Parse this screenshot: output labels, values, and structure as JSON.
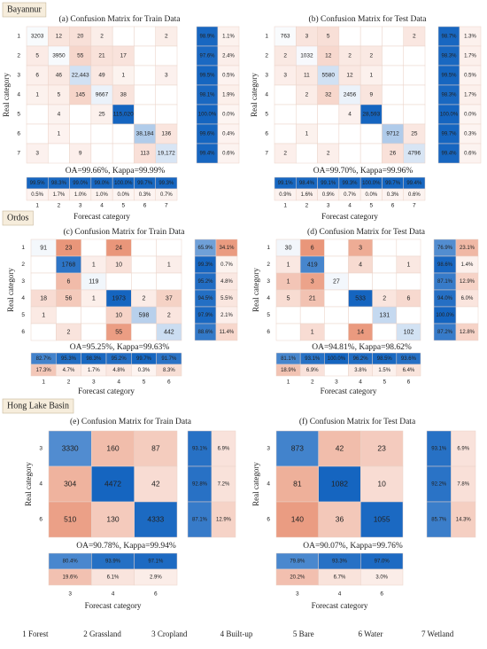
{
  "regions": [
    {
      "name": "Bayannur",
      "panels": [
        {
          "title": "(a) Confusion Matrix for Train Data",
          "labels": [
            "1",
            "2",
            "3",
            "4",
            "5",
            "6",
            "7"
          ],
          "matrix": [
            [
              "3203",
              "12",
              "20",
              "2",
              null,
              null,
              "2"
            ],
            [
              "5",
              "3950",
              "55",
              "21",
              "17",
              null,
              null
            ],
            [
              "6",
              "46",
              "22,443",
              "49",
              "1",
              null,
              "3"
            ],
            [
              "1",
              "5",
              "145",
              "9667",
              "38",
              null,
              null
            ],
            [
              null,
              "4",
              null,
              "25",
              "115,020",
              null,
              null
            ],
            [
              null,
              "1",
              null,
              null,
              null,
              "38,184",
              "136"
            ],
            [
              "3",
              null,
              "9",
              null,
              null,
              "113",
              "19,172"
            ]
          ],
          "row_accuracy": [
            [
              "98.9%",
              "1.1%"
            ],
            [
              "97.6%",
              "2.4%"
            ],
            [
              "99.5%",
              "0.5%"
            ],
            [
              "98.1%",
              "1.9%"
            ],
            [
              "100.0%",
              "0.0%"
            ],
            [
              "99.6%",
              "0.4%"
            ],
            [
              "99.4%",
              "0.6%"
            ]
          ],
          "col_accuracy": [
            [
              "99.5%",
              "98.3%",
              "99.0%",
              "99.0%",
              "100.0%",
              "99.7%",
              "99.3%"
            ],
            [
              "0.5%",
              "1.7%",
              "1.0%",
              "1.0%",
              "0.0%",
              "0.3%",
              "0.7%"
            ]
          ],
          "summary": "OA=99.66%, Kappa=99.99%",
          "y_label": "Real category",
          "x_label": "Forecast category"
        },
        {
          "title": "(b) Confusion Matrix for Test Data",
          "labels": [
            "1",
            "2",
            "3",
            "4",
            "5",
            "6",
            "7"
          ],
          "matrix": [
            [
              "763",
              "3",
              "5",
              null,
              null,
              null,
              "2"
            ],
            [
              "2",
              "1032",
              "12",
              "2",
              "2",
              null,
              null
            ],
            [
              "3",
              "11",
              "5580",
              "12",
              "1",
              null,
              null
            ],
            [
              null,
              "2",
              "32",
              "2456",
              "9",
              null,
              null
            ],
            [
              null,
              null,
              null,
              "4",
              "28,593",
              null,
              null
            ],
            [
              null,
              "1",
              null,
              null,
              null,
              "9712",
              "25"
            ],
            [
              "2",
              null,
              "2",
              null,
              null,
              "26",
              "4796"
            ]
          ],
          "row_accuracy": [
            [
              "98.7%",
              "1.3%"
            ],
            [
              "98.3%",
              "1.7%"
            ],
            [
              "99.5%",
              "0.5%"
            ],
            [
              "98.3%",
              "1.7%"
            ],
            [
              "100.0%",
              "0.0%"
            ],
            [
              "99.7%",
              "0.3%"
            ],
            [
              "99.4%",
              "0.6%"
            ]
          ],
          "col_accuracy": [
            [
              "99.1%",
              "98.4%",
              "99.1%",
              "99.3%",
              "100.0%",
              "99.7%",
              "99.4%"
            ],
            [
              "0.9%",
              "1.6%",
              "0.9%",
              "0.7%",
              "0.0%",
              "0.3%",
              "0.6%"
            ]
          ],
          "summary": "OA=99.70%, Kappa=99.96%",
          "y_label": "Real category",
          "x_label": "Forecast category"
        }
      ]
    },
    {
      "name": "Ordos",
      "panels": [
        {
          "title": "(c) Confusion Matrix for Train Data",
          "labels": [
            "1",
            "2",
            "3",
            "4",
            "5",
            "6"
          ],
          "matrix": [
            [
              "91",
              "23",
              null,
              "24",
              null,
              null
            ],
            [
              null,
              "1768",
              "1",
              "10",
              null,
              "1"
            ],
            [
              null,
              "6",
              "119",
              null,
              null,
              null
            ],
            [
              "18",
              "56",
              "1",
              "1973",
              "2",
              "37"
            ],
            [
              "1",
              null,
              null,
              "10",
              "598",
              "2"
            ],
            [
              null,
              "2",
              null,
              "55",
              null,
              "442"
            ]
          ],
          "row_accuracy": [
            [
              "65.9%",
              "34.1%"
            ],
            [
              "99.3%",
              "0.7%"
            ],
            [
              "95.2%",
              "4.8%"
            ],
            [
              "94.5%",
              "5.5%"
            ],
            [
              "97.9%",
              "2.1%"
            ],
            [
              "88.6%",
              "11.4%"
            ]
          ],
          "col_accuracy": [
            [
              "82.7%",
              "95.3%",
              "98.3%",
              "95.2%",
              "99.7%",
              "91.7%"
            ],
            [
              "17.3%",
              "4.7%",
              "1.7%",
              "4.8%",
              "0.3%",
              "8.3%"
            ]
          ],
          "summary": "OA=95.25%, Kappa=99.63%",
          "y_label": "Real category",
          "x_label": "Forecast category"
        },
        {
          "title": "(d) Confusion Matrix for Test Data",
          "labels": [
            "1",
            "2",
            "3",
            "4",
            "5",
            "6"
          ],
          "matrix": [
            [
              "30",
              "6",
              null,
              "3",
              null,
              null
            ],
            [
              "1",
              "419",
              null,
              "4",
              null,
              "1"
            ],
            [
              "1",
              "3",
              "27",
              null,
              null,
              null
            ],
            [
              "5",
              "21",
              null,
              "533",
              "2",
              "6"
            ],
            [
              null,
              null,
              null,
              null,
              "131",
              null
            ],
            [
              null,
              "1",
              null,
              "14",
              null,
              "102"
            ]
          ],
          "row_accuracy": [
            [
              "76.9%",
              "23.1%"
            ],
            [
              "98.6%",
              "1.4%"
            ],
            [
              "87.1%",
              "12.9%"
            ],
            [
              "94.0%",
              "6.0%"
            ],
            [
              "100.0%",
              null
            ],
            [
              "87.2%",
              "12.8%"
            ]
          ],
          "col_accuracy": [
            [
              "81.1%",
              "93.1%",
              "100.0%",
              "96.2%",
              "98.5%",
              "93.6%"
            ],
            [
              "18.9%",
              "6.9%",
              null,
              "3.8%",
              "1.5%",
              "6.4%"
            ]
          ],
          "summary": "OA=94.81%, Kappa=98.62%",
          "y_label": "Real category",
          "x_label": "Forecast category"
        }
      ]
    },
    {
      "name": "Hong Lake Basin",
      "panels": [
        {
          "title": "(e) Confusion Matrix for Train Data",
          "labels": [
            "3",
            "4",
            "6"
          ],
          "matrix": [
            [
              "3330",
              "160",
              "87"
            ],
            [
              "304",
              "4472",
              "42"
            ],
            [
              "510",
              "130",
              "4333"
            ]
          ],
          "row_accuracy": [
            [
              "93.1%",
              "6.9%"
            ],
            [
              "92.8%",
              "7.2%"
            ],
            [
              "87.1%",
              "12.9%"
            ]
          ],
          "col_accuracy": [
            [
              "80.4%",
              "93.9%",
              "97.1%"
            ],
            [
              "19.6%",
              "6.1%",
              "2.9%"
            ]
          ],
          "summary": "OA=90.78%, Kappa=99.94%",
          "y_label": "Real category",
          "x_label": "Forecast category"
        },
        {
          "title": "(f) Confusion Matrix for Test Data",
          "labels": [
            "3",
            "4",
            "6"
          ],
          "matrix": [
            [
              "873",
              "42",
              "23"
            ],
            [
              "81",
              "1082",
              "10"
            ],
            [
              "140",
              "36",
              "1055"
            ]
          ],
          "row_accuracy": [
            [
              "93.1%",
              "6.9%"
            ],
            [
              "92.2%",
              "7.8%"
            ],
            [
              "85.7%",
              "14.3%"
            ]
          ],
          "col_accuracy": [
            [
              "79.8%",
              "93.3%",
              "97.0%"
            ],
            [
              "20.2%",
              "6.7%",
              "3.0%"
            ]
          ],
          "summary": "OA=90.07%, Kappa=99.76%",
          "y_label": "Real category",
          "x_label": "Forecast category"
        }
      ]
    }
  ],
  "legend": [
    "1 Forest",
    "2 Grassland",
    "3 Cropland",
    "4 Built-up",
    "5 Bare",
    "6 Water",
    "7 Wetland"
  ]
}
